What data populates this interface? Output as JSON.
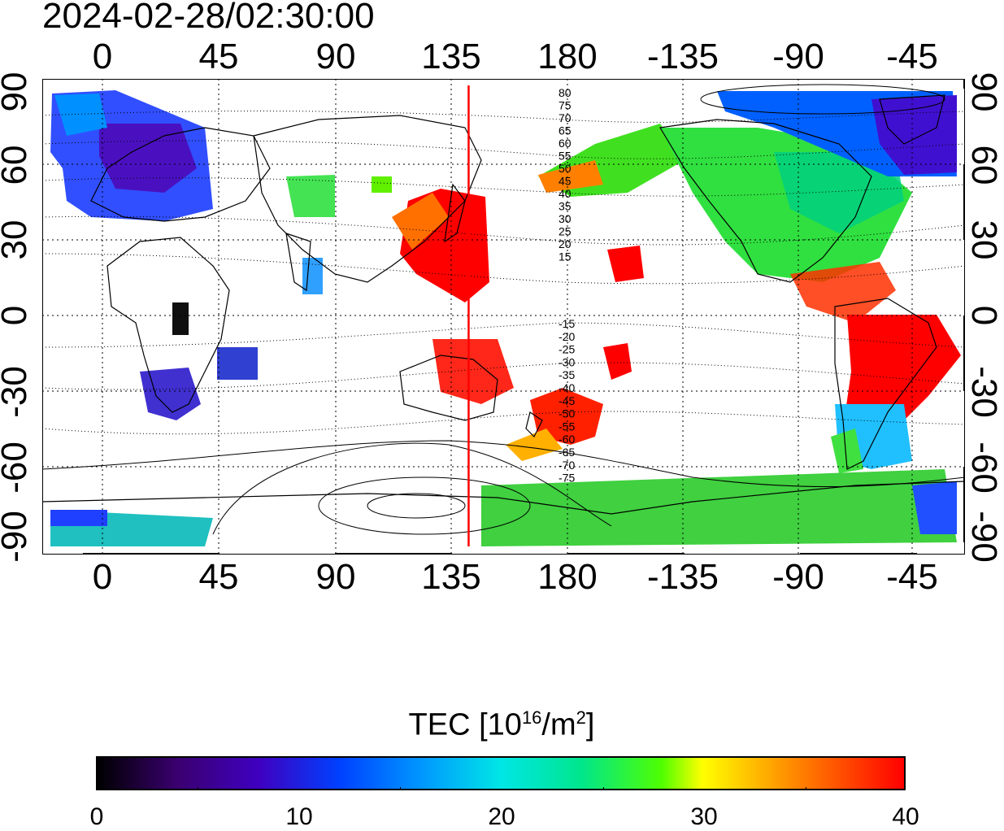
{
  "timestamp": "2024-02-28/02:30:00",
  "axes": {
    "x_top": [
      "0",
      "45",
      "90",
      "135",
      "180",
      "-135",
      "-90",
      "-45"
    ],
    "x_bottom": [
      "0",
      "45",
      "90",
      "135",
      "180",
      "-135",
      "-90",
      "-45"
    ],
    "y_left": [
      "90",
      "60",
      "30",
      "0",
      "-30",
      "-60",
      "-90"
    ],
    "y_right": [
      "90",
      "60",
      "30",
      "0",
      "-30",
      "-60",
      "-90"
    ]
  },
  "contour_labels_north": [
    "80",
    "75",
    "70",
    "65",
    "60",
    "55",
    "50",
    "45",
    "40",
    "35",
    "30",
    "25",
    "20",
    "15"
  ],
  "contour_labels_south": [
    "-15",
    "-20",
    "-25",
    "-30",
    "-35",
    "-40",
    "-45",
    "-50",
    "-55",
    "-60",
    "-65",
    "-70",
    "-75"
  ],
  "meridian_marker": {
    "longitude": 142,
    "color": "#ff0000"
  },
  "colorbar": {
    "title": "TEC  [10",
    "title_exponent": "16",
    "title_mid": "/m",
    "title_exponent2": "2",
    "title_end": "]",
    "min": 0,
    "max": 40,
    "ticks": [
      "0",
      "10",
      "20",
      "30",
      "40"
    ]
  },
  "colors": {
    "low": "#000000",
    "mid": "#00e6e6",
    "high": "#ff0000",
    "marker": "#ff0000"
  },
  "tec_regions": [
    {
      "name": "europe",
      "value": 9
    },
    {
      "name": "japan-east-asia",
      "value": 40
    },
    {
      "name": "north-america",
      "value": 23
    },
    {
      "name": "south-america",
      "value": 38
    },
    {
      "name": "southern-africa",
      "value": 10
    },
    {
      "name": "antarctica",
      "value": 22
    },
    {
      "name": "new-zealand",
      "value": 38
    },
    {
      "name": "australia-north",
      "value": 39
    },
    {
      "name": "arctic-canada",
      "value": 12
    }
  ]
}
